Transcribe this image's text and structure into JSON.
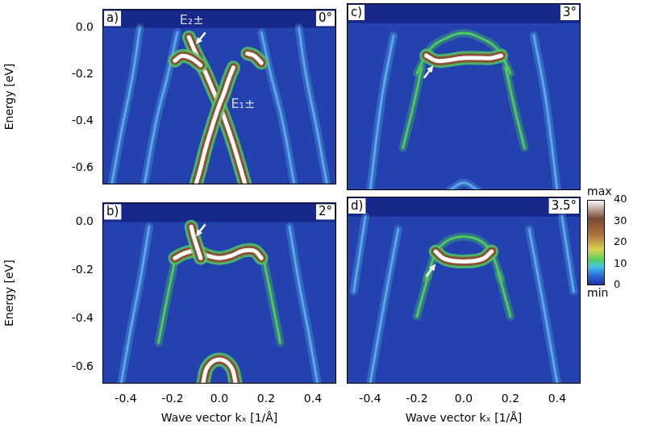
{
  "chart_data": [
    {
      "type": "line",
      "panel": "a)",
      "title": "0°",
      "ylabel": "Energy [eV]",
      "xlim": [
        -0.5,
        0.5
      ],
      "ylim": [
        -0.67,
        0.08
      ],
      "xticks": [
        -0.4,
        -0.2,
        {
          "value": 0,
          "label": "0.0"
        },
        0.2,
        0.4
      ],
      "yticks": [
        {
          "value": 0,
          "label": "0.0"
        },
        -0.2,
        -0.4,
        -0.6
      ],
      "grid": false,
      "tick_labels": "y",
      "series": [
        {
          "color": "#5aa8e8",
          "x": [
            -0.18,
            -0.22,
            -0.27,
            -0.32
          ],
          "values": [
            -0.02,
            -0.2,
            -0.4,
            -0.67
          ]
        },
        {
          "color": "#5aa8e8",
          "x": [
            0.18,
            0.22,
            0.27,
            0.32
          ],
          "values": [
            -0.02,
            -0.2,
            -0.4,
            -0.67
          ]
        },
        {
          "color": "#5aa8e8",
          "x": [
            -0.34,
            -0.37,
            -0.42,
            -0.46
          ],
          "values": [
            0.0,
            -0.2,
            -0.45,
            -0.67
          ]
        },
        {
          "color": "#5aa8e8",
          "x": [
            0.34,
            0.37,
            0.42,
            0.46
          ],
          "values": [
            0.0,
            -0.2,
            -0.45,
            -0.67
          ]
        },
        {
          "color": "#ffffff",
          "x": [
            -0.13,
            -0.1,
            -0.06,
            -0.03,
            0,
            0.03,
            0.06,
            0.09,
            0.11
          ],
          "values": [
            -0.04,
            -0.11,
            -0.19,
            -0.26,
            -0.33,
            -0.41,
            -0.5,
            -0.6,
            -0.67
          ]
        },
        {
          "color": "#ffffff",
          "x": [
            0.06,
            0.04,
            0.02,
            0,
            -0.03,
            -0.06,
            -0.08,
            -0.1
          ],
          "values": [
            -0.17,
            -0.22,
            -0.28,
            -0.33,
            -0.42,
            -0.52,
            -0.6,
            -0.67
          ]
        },
        {
          "color": "#ffffff",
          "x": [
            -0.19,
            -0.16,
            -0.12,
            -0.08
          ],
          "values": [
            -0.14,
            -0.12,
            -0.13,
            -0.16
          ]
        },
        {
          "color": "#ffffff",
          "x": [
            0.12,
            0.15,
            0.18
          ],
          "values": [
            -0.11,
            -0.12,
            -0.15
          ]
        }
      ],
      "annotations": [
        {
          "text": "E₂±",
          "x": -0.17,
          "y": 0.03
        },
        {
          "text": "E₁±",
          "x": 0.05,
          "y": -0.33
        }
      ],
      "arrows": [
        {
          "from": [
            -0.06,
            -0.02
          ],
          "to": [
            -0.1,
            -0.07
          ]
        }
      ]
    },
    {
      "type": "line",
      "panel": "b)",
      "title": "2°",
      "ylabel": "Energy [eV]",
      "xlabel": "Wave vector kₓ [1/Å]",
      "xlim": [
        -0.5,
        0.5
      ],
      "ylim": [
        -0.67,
        0.08
      ],
      "xticks": [
        -0.4,
        -0.2,
        {
          "value": 0,
          "label": "0.0"
        },
        0.2,
        0.4
      ],
      "yticks": [
        {
          "value": 0,
          "label": "0.0"
        },
        -0.2,
        -0.4,
        -0.6
      ],
      "grid": false,
      "tick_labels": true,
      "series": [
        {
          "color": "#5aa8e8",
          "x": [
            -0.3,
            -0.34,
            -0.38,
            -0.42
          ],
          "values": [
            -0.02,
            -0.25,
            -0.45,
            -0.67
          ]
        },
        {
          "color": "#5aa8e8",
          "x": [
            0.3,
            0.34,
            0.38,
            0.42
          ],
          "values": [
            -0.02,
            -0.25,
            -0.45,
            -0.67
          ]
        },
        {
          "color": "#50c860",
          "x": [
            -0.19,
            -0.22,
            -0.26
          ],
          "values": [
            -0.16,
            -0.3,
            -0.5
          ]
        },
        {
          "color": "#50c860",
          "x": [
            0.19,
            0.22,
            0.26
          ],
          "values": [
            -0.16,
            -0.3,
            -0.5
          ]
        },
        {
          "color": "#ffffff",
          "x": [
            -0.19,
            -0.15,
            -0.1,
            -0.05,
            0,
            0.05,
            0.1,
            0.15,
            0.18
          ],
          "values": [
            -0.15,
            -0.13,
            -0.12,
            -0.14,
            -0.15,
            -0.14,
            -0.12,
            -0.12,
            -0.15
          ]
        },
        {
          "color": "#ffffff",
          "x": [
            -0.08,
            -0.11,
            -0.12
          ],
          "values": [
            -0.15,
            -0.06,
            -0.02
          ]
        },
        {
          "color": "#ffffff",
          "x": [
            -0.07,
            -0.05,
            0,
            0.05,
            0.07
          ],
          "values": [
            -0.67,
            -0.6,
            -0.57,
            -0.6,
            -0.67
          ]
        }
      ],
      "arrows": [
        {
          "from": [
            -0.06,
            -0.01
          ],
          "to": [
            -0.1,
            -0.06
          ]
        }
      ]
    },
    {
      "type": "line",
      "panel": "c)",
      "title": "3°",
      "xlim": [
        -0.5,
        0.5
      ],
      "ylim": [
        -0.67,
        0.08
      ],
      "xticks": [
        -0.4,
        -0.2,
        {
          "value": 0,
          "label": "0.0"
        },
        0.2,
        0.4
      ],
      "yticks": [
        {
          "value": 0,
          "label": "0.0"
        },
        -0.2,
        -0.4,
        -0.6
      ],
      "grid": false,
      "tick_labels": false,
      "series": [
        {
          "color": "#5aa8e8",
          "x": [
            -0.3,
            -0.35,
            -0.4
          ],
          "values": [
            -0.05,
            -0.3,
            -0.67
          ]
        },
        {
          "color": "#5aa8e8",
          "x": [
            0.3,
            0.35,
            0.4
          ],
          "values": [
            -0.05,
            -0.3,
            -0.67
          ]
        },
        {
          "color": "#5aa8e8",
          "x": [
            -0.06,
            0,
            0.06
          ],
          "values": [
            -0.67,
            -0.64,
            -0.67
          ]
        },
        {
          "color": "#50c860",
          "x": [
            -0.18,
            -0.22,
            -0.26
          ],
          "values": [
            -0.18,
            -0.35,
            -0.5
          ]
        },
        {
          "color": "#50c860",
          "x": [
            0.18,
            0.22,
            0.26
          ],
          "values": [
            -0.18,
            -0.35,
            -0.5
          ]
        },
        {
          "color": "#50c860",
          "x": [
            -0.2,
            -0.14,
            -0.05,
            0,
            0.05,
            0.14,
            0.2
          ],
          "values": [
            -0.2,
            -0.1,
            -0.05,
            -0.04,
            -0.05,
            -0.1,
            -0.2
          ]
        },
        {
          "color": "#ffffff",
          "x": [
            -0.16,
            -0.12,
            -0.08,
            0,
            0.08,
            0.12,
            0.16
          ],
          "values": [
            -0.13,
            -0.15,
            -0.15,
            -0.14,
            -0.14,
            -0.14,
            -0.13
          ]
        }
      ],
      "arrows": [
        {
          "from": [
            -0.17,
            -0.22
          ],
          "to": [
            -0.13,
            -0.17
          ]
        }
      ]
    },
    {
      "type": "line",
      "panel": "d)",
      "title": "3.5°",
      "xlabel": "Wave vector kₓ [1/Å]",
      "xlim": [
        -0.5,
        0.5
      ],
      "ylim": [
        -0.67,
        0.08
      ],
      "xticks": [
        -0.4,
        -0.2,
        {
          "value": 0,
          "label": "0.0"
        },
        0.2,
        0.4
      ],
      "yticks": [
        {
          "value": 0,
          "label": "0.0"
        },
        -0.2,
        -0.4,
        -0.6
      ],
      "grid": false,
      "tick_labels": "x",
      "series": [
        {
          "color": "#5aa8e8",
          "x": [
            -0.28,
            -0.34,
            -0.4
          ],
          "values": [
            -0.05,
            -0.35,
            -0.67
          ]
        },
        {
          "color": "#5aa8e8",
          "x": [
            0.28,
            0.34,
            0.4
          ],
          "values": [
            -0.05,
            -0.35,
            -0.67
          ]
        },
        {
          "color": "#5aa8e8",
          "x": [
            -0.42,
            -0.47
          ],
          "values": [
            0.0,
            -0.3
          ]
        },
        {
          "color": "#5aa8e8",
          "x": [
            0.42,
            0.47
          ],
          "values": [
            0.0,
            -0.3
          ]
        },
        {
          "color": "#50c860",
          "x": [
            -0.15,
            -0.2
          ],
          "values": [
            -0.23,
            -0.4
          ]
        },
        {
          "color": "#50c860",
          "x": [
            0.15,
            0.2
          ],
          "values": [
            -0.23,
            -0.4
          ]
        },
        {
          "color": "#50c860",
          "x": [
            -0.16,
            -0.1,
            0,
            0.1,
            0.16
          ],
          "values": [
            -0.25,
            -0.12,
            -0.08,
            -0.12,
            -0.25
          ]
        },
        {
          "color": "#ffffff",
          "x": [
            -0.12,
            -0.08,
            0,
            0.08,
            0.12
          ],
          "values": [
            -0.14,
            -0.17,
            -0.18,
            -0.17,
            -0.14
          ]
        }
      ],
      "arrows": [
        {
          "from": [
            -0.16,
            -0.24
          ],
          "to": [
            -0.12,
            -0.19
          ]
        }
      ]
    }
  ],
  "colorbar": {
    "range": [
      0,
      40
    ],
    "ticks": [
      0,
      10,
      20,
      30,
      40
    ],
    "max_label": "max",
    "min_label": "min"
  }
}
